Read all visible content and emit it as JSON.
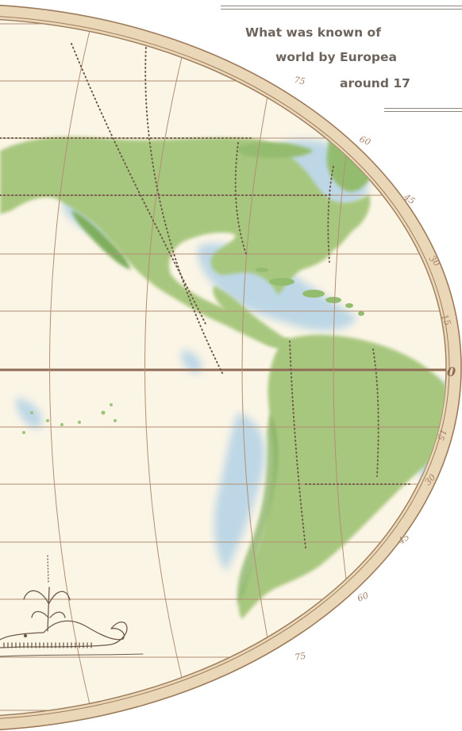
{
  "map": {
    "caption": {
      "line1": "What was known of",
      "line2": "world by Europea",
      "line3": "around 17"
    },
    "latitude_labels": [
      "75",
      "60",
      "45",
      "30",
      "15",
      "0",
      "15",
      "30",
      "45",
      "60",
      "75"
    ],
    "colors": {
      "paper": "#fbf5e6",
      "border": "#ead7b7",
      "border_outline": "#9c7b5b",
      "grid": "#b28f73",
      "equator": "#8f6c55",
      "land": "#a7c77e",
      "land_dark": "#7eae5d",
      "water": "#a9cde6",
      "dotted": "#6f5a4a"
    }
  }
}
